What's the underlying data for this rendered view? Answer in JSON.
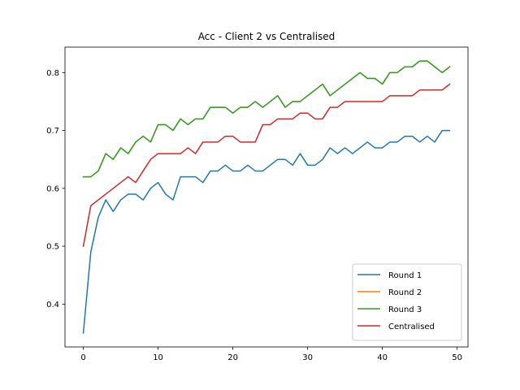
{
  "chart_data": {
    "type": "line",
    "title": "Acc - Client 2 vs Centralised",
    "xlabel": "",
    "ylabel": "",
    "xlim": [
      -2.45,
      51.45
    ],
    "ylim": [
      0.326,
      0.844
    ],
    "xticks": [
      0,
      10,
      20,
      30,
      40,
      50
    ],
    "yticks": [
      0.4,
      0.5,
      0.6,
      0.7,
      0.8
    ],
    "ytick_labels": [
      "0.4",
      "0.5",
      "0.6",
      "0.7",
      "0.8"
    ],
    "grid": false,
    "legend_position": "lower-right",
    "x": [
      0,
      1,
      2,
      3,
      4,
      5,
      6,
      7,
      8,
      9,
      10,
      11,
      12,
      13,
      14,
      15,
      16,
      17,
      18,
      19,
      20,
      21,
      22,
      23,
      24,
      25,
      26,
      27,
      28,
      29,
      30,
      31,
      32,
      33,
      34,
      35,
      36,
      37,
      38,
      39,
      40,
      41,
      42,
      43,
      44,
      45,
      46,
      47,
      48,
      49
    ],
    "series": [
      {
        "name": "Round 1",
        "color": "#1f77b4",
        "values": [
          0.35,
          0.49,
          0.55,
          0.58,
          0.56,
          0.58,
          0.59,
          0.59,
          0.58,
          0.6,
          0.61,
          0.59,
          0.58,
          0.62,
          0.62,
          0.62,
          0.61,
          0.63,
          0.63,
          0.64,
          0.63,
          0.63,
          0.64,
          0.63,
          0.63,
          0.64,
          0.65,
          0.65,
          0.64,
          0.66,
          0.64,
          0.64,
          0.65,
          0.67,
          0.66,
          0.67,
          0.66,
          0.67,
          0.68,
          0.67,
          0.67,
          0.68,
          0.68,
          0.69,
          0.69,
          0.68,
          0.69,
          0.68,
          0.7,
          0.7
        ]
      },
      {
        "name": "Round 2",
        "color": "#ff7f0e",
        "values": [
          0.62,
          0.62,
          0.63,
          0.66,
          0.65,
          0.67,
          0.66,
          0.68,
          0.69,
          0.68,
          0.71,
          0.71,
          0.7,
          0.72,
          0.71,
          0.72,
          0.72,
          0.74,
          0.74,
          0.74,
          0.73,
          0.74,
          0.74,
          0.75,
          0.74,
          0.75,
          0.76,
          0.74,
          0.75,
          0.75,
          0.76,
          0.77,
          0.78,
          0.76,
          0.77,
          0.78,
          0.79,
          0.8,
          0.79,
          0.79,
          0.78,
          0.8,
          0.8,
          0.81,
          0.81,
          0.82,
          0.82,
          0.81,
          0.8,
          0.81
        ]
      },
      {
        "name": "Round 3",
        "color": "#2ca02c",
        "values": [
          0.62,
          0.62,
          0.63,
          0.66,
          0.65,
          0.67,
          0.66,
          0.68,
          0.69,
          0.68,
          0.71,
          0.71,
          0.7,
          0.72,
          0.71,
          0.72,
          0.72,
          0.74,
          0.74,
          0.74,
          0.73,
          0.74,
          0.74,
          0.75,
          0.74,
          0.75,
          0.76,
          0.74,
          0.75,
          0.75,
          0.76,
          0.77,
          0.78,
          0.76,
          0.77,
          0.78,
          0.79,
          0.8,
          0.79,
          0.79,
          0.78,
          0.8,
          0.8,
          0.81,
          0.81,
          0.82,
          0.82,
          0.81,
          0.8,
          0.81
        ]
      },
      {
        "name": "Centralised",
        "color": "#d62728",
        "values": [
          0.5,
          0.57,
          0.58,
          0.59,
          0.6,
          0.61,
          0.62,
          0.61,
          0.63,
          0.65,
          0.66,
          0.66,
          0.66,
          0.66,
          0.67,
          0.66,
          0.68,
          0.68,
          0.68,
          0.69,
          0.69,
          0.68,
          0.68,
          0.68,
          0.71,
          0.71,
          0.72,
          0.72,
          0.72,
          0.73,
          0.73,
          0.72,
          0.72,
          0.74,
          0.74,
          0.75,
          0.75,
          0.75,
          0.75,
          0.75,
          0.75,
          0.76,
          0.76,
          0.76,
          0.76,
          0.77,
          0.77,
          0.77,
          0.77,
          0.78
        ]
      }
    ]
  }
}
